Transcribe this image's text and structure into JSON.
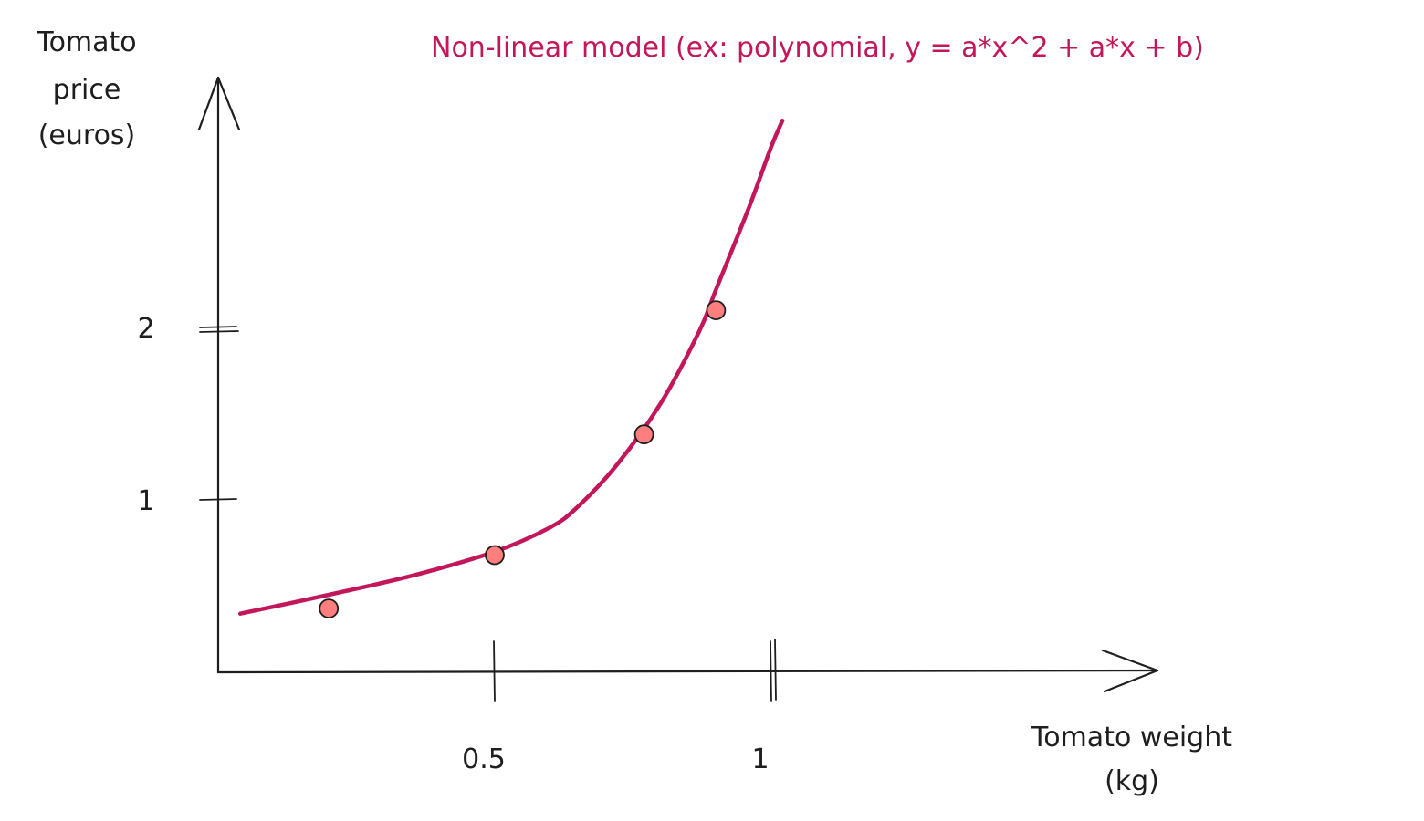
{
  "chart_data": {
    "type": "scatter",
    "title": "Non-linear model (ex: polynomial, y = a*x^2 + a*x + b)",
    "xlabel": [
      "Tomato weight",
      "(kg)"
    ],
    "ylabel": [
      "Tomato",
      "price",
      "(euros)"
    ],
    "xlim": [
      0,
      1.7
    ],
    "ylim": [
      0,
      3.4
    ],
    "x_ticks": [
      {
        "value": 0.5,
        "label": "0.5"
      },
      {
        "value": 1,
        "label": "1"
      }
    ],
    "y_ticks": [
      {
        "value": 1,
        "label": "1"
      },
      {
        "value": 2,
        "label": "2"
      }
    ],
    "grid": false,
    "points": [
      {
        "x": 0.2,
        "y": 0.37
      },
      {
        "x": 0.5,
        "y": 0.68
      },
      {
        "x": 0.77,
        "y": 1.38
      },
      {
        "x": 0.9,
        "y": 2.1
      }
    ],
    "fit_curve": {
      "x": [
        0.04,
        0.2,
        0.35,
        0.5,
        0.6,
        0.65,
        0.72,
        0.8,
        0.87,
        0.9,
        0.96,
        1.0,
        1.02
      ],
      "y": [
        0.34,
        0.45,
        0.56,
        0.7,
        0.84,
        0.96,
        1.2,
        1.56,
        1.98,
        2.22,
        2.7,
        3.05,
        3.2
      ]
    }
  }
}
